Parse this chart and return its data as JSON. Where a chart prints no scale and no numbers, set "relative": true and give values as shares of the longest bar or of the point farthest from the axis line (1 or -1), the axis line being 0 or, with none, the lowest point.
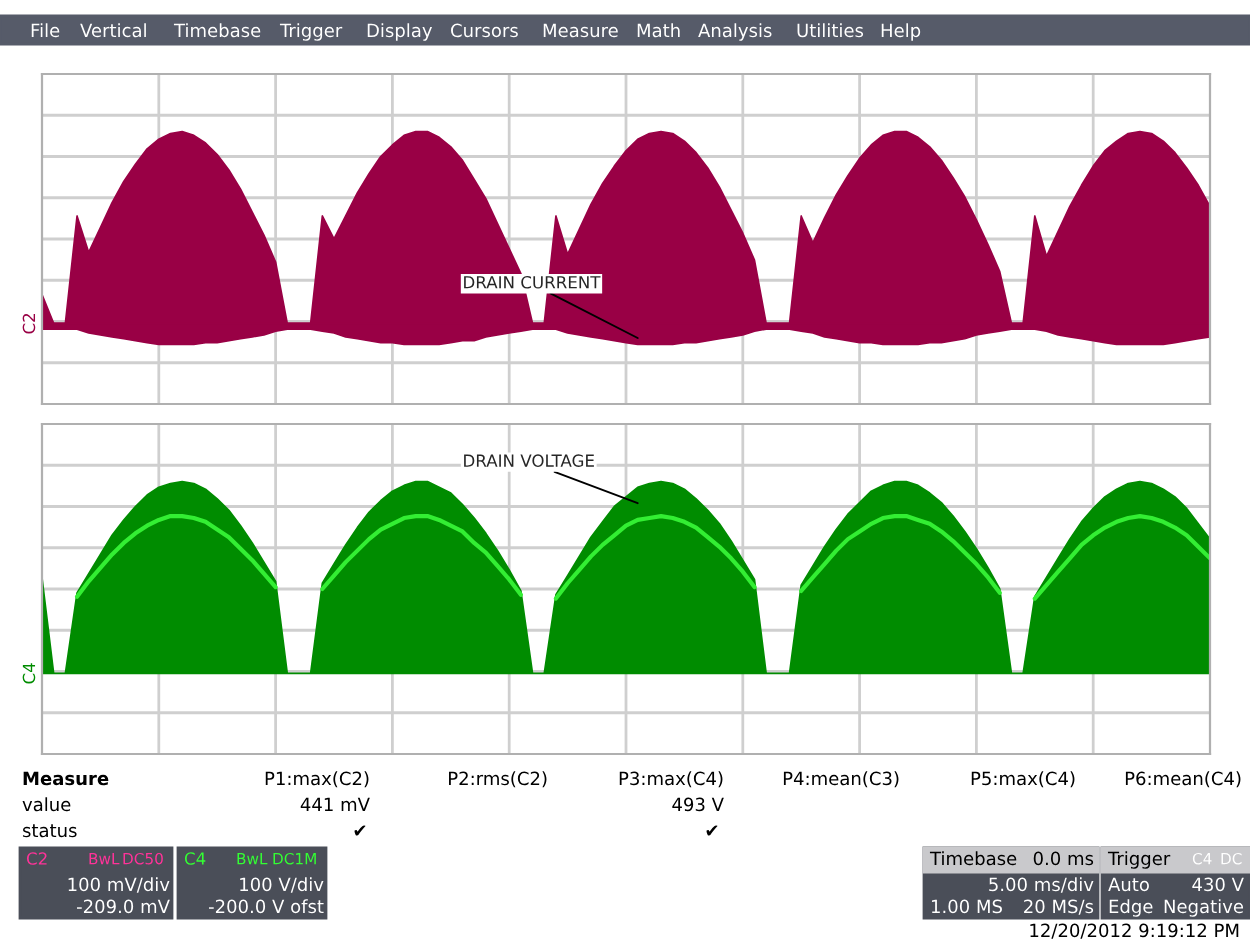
{
  "chart_data": [
    {
      "type": "other",
      "annotations": [
        "File",
        "Vertical",
        "Timebase",
        "Trigger",
        "Display",
        "Cursors",
        "Measure",
        "Math",
        "Analysis",
        "Utilities",
        "Help"
      ]
    },
    {
      "type": "area",
      "relative": true,
      "grid": true,
      "categories": [
        null,
        null,
        null,
        null,
        null,
        null,
        null,
        null,
        null,
        null,
        null,
        null,
        null,
        null,
        null,
        null,
        null,
        null,
        null,
        null,
        null,
        null,
        null,
        null,
        null,
        null,
        null,
        null,
        null,
        null,
        null,
        null,
        null,
        null,
        null,
        null,
        null,
        null,
        null,
        null,
        null,
        null,
        null,
        null,
        null,
        null,
        null,
        null,
        null,
        null,
        null,
        null,
        null,
        null,
        null,
        null,
        null,
        null,
        null,
        null,
        null,
        null,
        null,
        null,
        null,
        null,
        null,
        null,
        null,
        null,
        null,
        null,
        null,
        null,
        null,
        null,
        null,
        null,
        null,
        null,
        null,
        null,
        null,
        null,
        null,
        null,
        null,
        null,
        null,
        null,
        null,
        null,
        null,
        null,
        null,
        null,
        null,
        null,
        null,
        null,
        null
      ],
      "series": [
        {
          "color": "#990045",
          "values": [
            0.15,
            0,
            0,
            0.56,
            0.37,
            0.5,
            0.63,
            0.74,
            0.83,
            0.91,
            0.96,
            0.99,
            1.0,
            0.98,
            0.94,
            0.88,
            0.8,
            0.7,
            0.58,
            0.46,
            0.32,
            0,
            0,
            0,
            0.56,
            0.44,
            0.56,
            0.68,
            0.78,
            0.87,
            0.93,
            0.98,
            1.0,
            1.0,
            0.97,
            0.92,
            0.85,
            0.75,
            0.65,
            0.52,
            0.39,
            0.26,
            0,
            0,
            0.56,
            0.36,
            0.49,
            0.62,
            0.73,
            0.82,
            0.9,
            0.96,
            0.99,
            1.0,
            0.99,
            0.95,
            0.89,
            0.81,
            0.71,
            0.59,
            0.47,
            0.33,
            0,
            0,
            0,
            0.56,
            0.42,
            0.55,
            0.67,
            0.77,
            0.86,
            0.93,
            0.98,
            1.0,
            1.0,
            0.97,
            0.92,
            0.85,
            0.76,
            0.66,
            0.54,
            0.41,
            0.27,
            0,
            0,
            0.56,
            0.35,
            0.48,
            0.61,
            0.72,
            0.82,
            0.9,
            0.95,
            0.99,
            1.0,
            0.99,
            0.95,
            0.89,
            0.81,
            0.72,
            0.61
          ]
        },
        {
          "color": "#990045",
          "values": [
            -0.03,
            -0.03,
            -0.03,
            -0.03,
            -0.05,
            -0.06,
            -0.07,
            -0.08,
            -0.09,
            -0.1,
            -0.11,
            -0.11,
            -0.11,
            -0.11,
            -0.1,
            -0.1,
            -0.09,
            -0.08,
            -0.07,
            -0.06,
            -0.04,
            -0.03,
            -0.03,
            -0.03,
            -0.04,
            -0.05,
            -0.07,
            -0.08,
            -0.09,
            -0.1,
            -0.1,
            -0.11,
            -0.11,
            -0.11,
            -0.11,
            -0.1,
            -0.09,
            -0.09,
            -0.07,
            -0.06,
            -0.05,
            -0.04,
            -0.03,
            -0.03,
            -0.03,
            -0.05,
            -0.06,
            -0.07,
            -0.08,
            -0.09,
            -0.1,
            -0.11,
            -0.11,
            -0.11,
            -0.11,
            -0.1,
            -0.1,
            -0.09,
            -0.08,
            -0.07,
            -0.06,
            -0.04,
            -0.03,
            -0.03,
            -0.03,
            -0.04,
            -0.05,
            -0.07,
            -0.08,
            -0.09,
            -0.1,
            -0.1,
            -0.11,
            -0.11,
            -0.11,
            -0.11,
            -0.1,
            -0.1,
            -0.09,
            -0.08,
            -0.06,
            -0.05,
            -0.04,
            -0.03,
            -0.03,
            -0.03,
            -0.04,
            -0.06,
            -0.07,
            -0.08,
            -0.09,
            -0.1,
            -0.11,
            -0.11,
            -0.11,
            -0.11,
            -0.11,
            -0.1,
            -0.09,
            -0.08,
            -0.07
          ]
        }
      ],
      "annotations": [
        "C2",
        "DRAIN CURRENT"
      ]
    },
    {
      "type": "area",
      "relative": true,
      "grid": true,
      "categories": [
        null,
        null,
        null,
        null,
        null,
        null,
        null,
        null,
        null,
        null,
        null,
        null,
        null,
        null,
        null,
        null,
        null,
        null,
        null,
        null,
        null,
        null,
        null,
        null,
        null,
        null,
        null,
        null,
        null,
        null,
        null,
        null,
        null,
        null,
        null,
        null,
        null,
        null,
        null,
        null,
        null,
        null,
        null,
        null,
        null,
        null,
        null,
        null,
        null,
        null,
        null,
        null,
        null,
        null,
        null,
        null,
        null,
        null,
        null,
        null,
        null,
        null,
        null,
        null,
        null,
        null,
        null,
        null,
        null,
        null,
        null,
        null,
        null,
        null,
        null,
        null,
        null,
        null,
        null,
        null,
        null,
        null,
        null,
        null,
        null,
        null,
        null,
        null,
        null,
        null,
        null,
        null,
        null,
        null,
        null,
        null,
        null,
        null,
        null,
        null,
        null
      ],
      "series": [
        {
          "color": "#008c00",
          "values": [
            0.5,
            0,
            0,
            0.42,
            0.52,
            0.62,
            0.72,
            0.8,
            0.87,
            0.93,
            0.97,
            0.99,
            1.0,
            0.99,
            0.96,
            0.91,
            0.85,
            0.77,
            0.68,
            0.58,
            0.48,
            0,
            0,
            0,
            0.47,
            0.57,
            0.67,
            0.76,
            0.84,
            0.9,
            0.95,
            0.98,
            1.0,
            1.0,
            0.97,
            0.94,
            0.88,
            0.81,
            0.73,
            0.64,
            0.54,
            0.43,
            0,
            0,
            0.41,
            0.51,
            0.61,
            0.71,
            0.79,
            0.87,
            0.92,
            0.97,
            0.99,
            1.0,
            0.99,
            0.96,
            0.91,
            0.85,
            0.78,
            0.69,
            0.59,
            0.49,
            0,
            0,
            0,
            0.46,
            0.56,
            0.66,
            0.75,
            0.83,
            0.89,
            0.95,
            0.98,
            1.0,
            1.0,
            0.98,
            0.94,
            0.89,
            0.82,
            0.74,
            0.65,
            0.55,
            0.44,
            0,
            0,
            0.4,
            0.5,
            0.6,
            0.7,
            0.79,
            0.86,
            0.92,
            0.96,
            0.99,
            1.0,
            0.99,
            0.96,
            0.92,
            0.86,
            0.78,
            0.7
          ]
        },
        {
          "type": "line",
          "color": "#33ee33",
          "values": [
            null,
            null,
            null,
            0.4,
            0.48,
            0.55,
            0.62,
            0.68,
            0.73,
            0.77,
            0.8,
            0.82,
            0.82,
            0.81,
            0.79,
            0.75,
            0.71,
            0.65,
            0.59,
            0.52,
            0.45,
            null,
            null,
            null,
            0.44,
            0.51,
            0.58,
            0.64,
            0.7,
            0.75,
            0.78,
            0.81,
            0.82,
            0.82,
            0.8,
            0.77,
            0.74,
            0.68,
            0.63,
            0.56,
            0.49,
            0.41,
            null,
            null,
            0.39,
            0.47,
            0.54,
            0.61,
            0.67,
            0.72,
            0.77,
            0.8,
            0.81,
            0.82,
            0.81,
            0.79,
            0.76,
            0.71,
            0.66,
            0.6,
            0.53,
            0.45,
            null,
            null,
            null,
            0.43,
            0.5,
            0.57,
            0.64,
            0.7,
            0.74,
            0.78,
            0.81,
            0.82,
            0.82,
            0.8,
            0.78,
            0.74,
            0.69,
            0.63,
            0.57,
            0.5,
            0.42,
            null,
            null,
            0.39,
            0.46,
            0.53,
            0.6,
            0.67,
            0.72,
            0.76,
            0.79,
            0.81,
            0.82,
            0.81,
            0.79,
            0.76,
            0.72,
            0.66,
            0.6
          ]
        }
      ],
      "annotations": [
        "C4",
        "DRAIN VOLTAGE"
      ]
    },
    {
      "type": "other",
      "annotations": [
        "Measure",
        "P1:max(C2)",
        "P2:rms(C2)",
        "P3:max(C4)",
        "P4:mean(C3)",
        "P5:max(C4)",
        "P6:mean(C4)",
        "value",
        "441 mV",
        "493 V",
        "status",
        "✔",
        "✔",
        "C2",
        "BwL",
        "DC50",
        "100 mV/div",
        "-209.0 mV",
        "C4",
        "BwL",
        "DC1M",
        "100 V/div",
        "-200.0 V ofst",
        "Timebase",
        "0.0 ms",
        "5.00 ms/div",
        "1.00 MS",
        "20 MS/s",
        "Trigger",
        "C4",
        "DC",
        "Auto",
        "430 V",
        "Edge",
        "Negative",
        "12/20/2012 9:19:12 PM"
      ]
    }
  ]
}
